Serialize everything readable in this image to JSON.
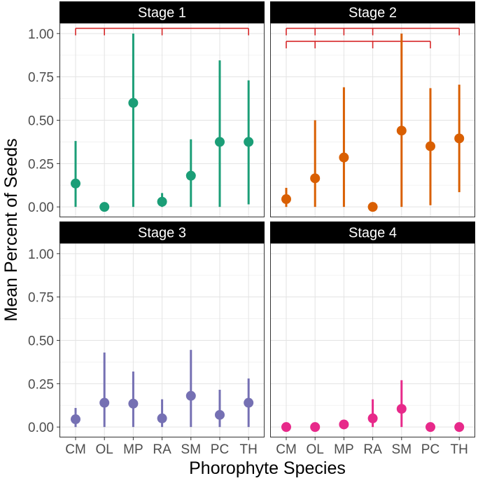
{
  "chart_data": {
    "type": "scatter",
    "subtype": "point-range faceted",
    "xlabel": "Phorophyte Species",
    "ylabel": "Mean Percent of Seeds",
    "categories": [
      "CM",
      "OL",
      "MP",
      "RA",
      "SM",
      "PC",
      "TH"
    ],
    "y_ticks": [
      "0.00",
      "0.25",
      "0.50",
      "0.75",
      "1.00"
    ],
    "ylim": [
      -0.06,
      1.06
    ],
    "grid": true,
    "facet_layout": "2x2",
    "bracket_color": "#d62728",
    "panels": [
      {
        "title": "Stage 1",
        "color": "#1b9e77",
        "points": [
          {
            "category": "CM",
            "mean": 0.135,
            "lower": 0.0,
            "upper": 0.38
          },
          {
            "category": "OL",
            "mean": 0.0,
            "lower": 0.0,
            "upper": 0.0
          },
          {
            "category": "MP",
            "mean": 0.6,
            "lower": 0.0,
            "upper": 1.0
          },
          {
            "category": "RA",
            "mean": 0.03,
            "lower": 0.0,
            "upper": 0.08
          },
          {
            "category": "SM",
            "mean": 0.18,
            "lower": 0.0,
            "upper": 0.39
          },
          {
            "category": "PC",
            "mean": 0.375,
            "lower": 0.0,
            "upper": 0.845
          },
          {
            "category": "TH",
            "mean": 0.375,
            "lower": 0.015,
            "upper": 0.73
          }
        ],
        "brackets": [
          {
            "from": "CM",
            "to": "TH",
            "level": 1.03,
            "ticks": [
              "CM",
              "OL",
              "RA",
              "TH"
            ]
          }
        ]
      },
      {
        "title": "Stage 2",
        "color": "#d95f02",
        "points": [
          {
            "category": "CM",
            "mean": 0.045,
            "lower": 0.0,
            "upper": 0.11
          },
          {
            "category": "OL",
            "mean": 0.165,
            "lower": 0.0,
            "upper": 0.5
          },
          {
            "category": "MP",
            "mean": 0.285,
            "lower": 0.0,
            "upper": 0.69
          },
          {
            "category": "RA",
            "mean": 0.0,
            "lower": 0.0,
            "upper": 0.0
          },
          {
            "category": "SM",
            "mean": 0.44,
            "lower": 0.0,
            "upper": 1.0
          },
          {
            "category": "PC",
            "mean": 0.35,
            "lower": 0.01,
            "upper": 0.685
          },
          {
            "category": "TH",
            "mean": 0.395,
            "lower": 0.085,
            "upper": 0.705
          }
        ],
        "brackets": [
          {
            "from": "CM",
            "to": "TH",
            "level": 1.03,
            "ticks": [
              "CM",
              "OL",
              "MP",
              "RA",
              "TH"
            ]
          },
          {
            "from": "CM",
            "to": "PC",
            "level": 0.955,
            "ticks": [
              "CM",
              "OL",
              "RA",
              "PC"
            ]
          }
        ]
      },
      {
        "title": "Stage 3",
        "color": "#7570b3",
        "points": [
          {
            "category": "CM",
            "mean": 0.045,
            "lower": 0.0,
            "upper": 0.11
          },
          {
            "category": "OL",
            "mean": 0.14,
            "lower": 0.0,
            "upper": 0.43
          },
          {
            "category": "MP",
            "mean": 0.135,
            "lower": 0.0,
            "upper": 0.32
          },
          {
            "category": "RA",
            "mean": 0.05,
            "lower": 0.0,
            "upper": 0.16
          },
          {
            "category": "SM",
            "mean": 0.18,
            "lower": 0.0,
            "upper": 0.445
          },
          {
            "category": "PC",
            "mean": 0.07,
            "lower": 0.0,
            "upper": 0.215
          },
          {
            "category": "TH",
            "mean": 0.14,
            "lower": 0.0,
            "upper": 0.28
          }
        ],
        "brackets": []
      },
      {
        "title": "Stage 4",
        "color": "#e7298a",
        "points": [
          {
            "category": "CM",
            "mean": 0.0,
            "lower": 0.0,
            "upper": 0.0
          },
          {
            "category": "OL",
            "mean": 0.0,
            "lower": 0.0,
            "upper": 0.0
          },
          {
            "category": "MP",
            "mean": 0.015,
            "lower": 0.0,
            "upper": 0.035
          },
          {
            "category": "RA",
            "mean": 0.05,
            "lower": 0.0,
            "upper": 0.16
          },
          {
            "category": "SM",
            "mean": 0.105,
            "lower": 0.0,
            "upper": 0.27
          },
          {
            "category": "PC",
            "mean": 0.0,
            "lower": 0.0,
            "upper": 0.0
          },
          {
            "category": "TH",
            "mean": 0.0,
            "lower": 0.0,
            "upper": 0.0
          }
        ],
        "brackets": []
      }
    ]
  }
}
